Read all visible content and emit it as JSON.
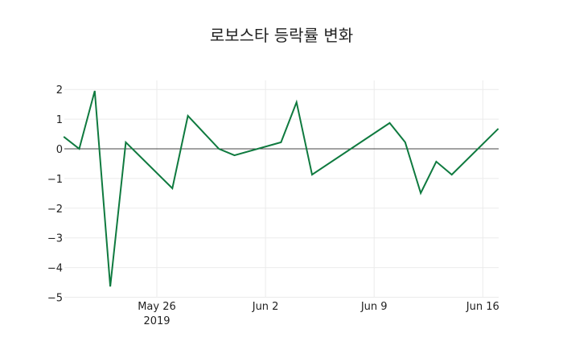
{
  "chart_data": {
    "type": "line",
    "title": "로보스타 등락률 변화",
    "xlabel": "",
    "ylabel": "",
    "ylim": [
      -5,
      2.4
    ],
    "grid": true,
    "legend": null,
    "line_color": "#0f7a3f",
    "x_ticks": [
      {
        "label": "May 26",
        "sublabel": "2019",
        "date": "2019-05-26"
      },
      {
        "label": "Jun 2",
        "date": "2019-06-02"
      },
      {
        "label": "Jun 9",
        "date": "2019-06-09"
      },
      {
        "label": "Jun 16",
        "date": "2019-06-16"
      }
    ],
    "y_ticks": [
      2,
      1,
      0,
      -1,
      -2,
      -3,
      -4,
      -5
    ],
    "x": [
      "2019-05-20",
      "2019-05-21",
      "2019-05-22",
      "2019-05-23",
      "2019-05-24",
      "2019-05-27",
      "2019-05-28",
      "2019-05-30",
      "2019-05-31",
      "2019-06-03",
      "2019-06-04",
      "2019-06-05",
      "2019-06-10",
      "2019-06-11",
      "2019-06-12",
      "2019-06-13",
      "2019-06-14",
      "2019-06-17"
    ],
    "values": [
      0.41,
      0.0,
      1.95,
      -4.64,
      0.22,
      -1.33,
      1.11,
      0.0,
      -0.22,
      0.22,
      1.57,
      -0.87,
      0.87,
      0.22,
      -1.49,
      -0.43,
      -0.87,
      0.68
    ]
  }
}
